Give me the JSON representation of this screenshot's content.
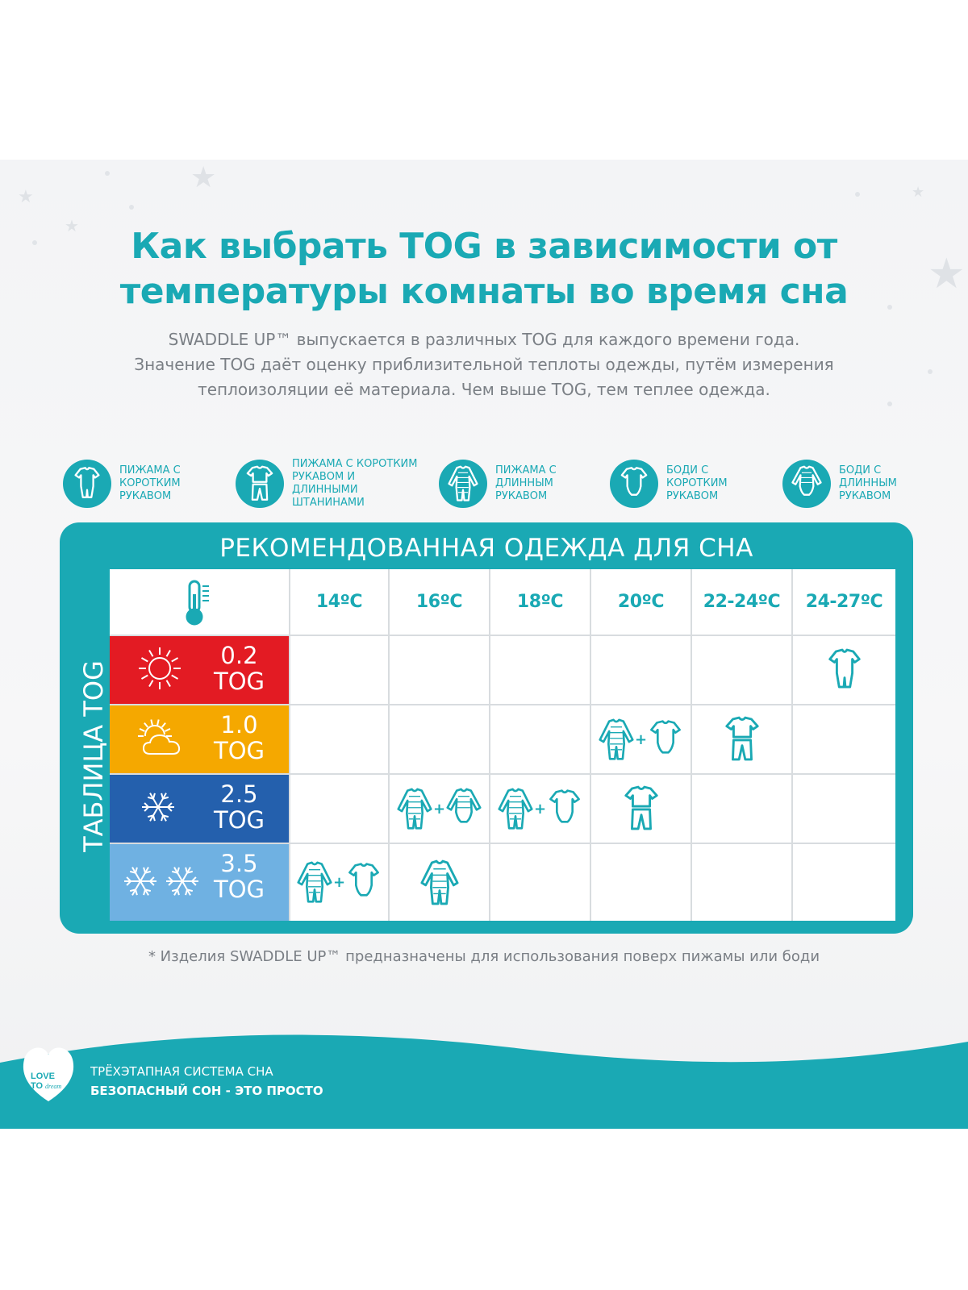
{
  "title_line1": "Как выбрать TOG в зависимости от",
  "title_line2": "температуры комнаты во время сна",
  "intro_lines": [
    "SWADDLE UP™ выпускается в различных TOG для каждого времени года.",
    "Значение TOG даёт оценку приблизительной теплоты одежды, путём измерения",
    "теплоизоляции её материала. Чем выше TOG, тем теплее одежда."
  ],
  "legend": [
    {
      "icon": "short-sleeve-romper-icon",
      "lines": [
        "ПИЖАМА С",
        "КОРОТКИМ",
        "РУКАВОМ"
      ]
    },
    {
      "icon": "short-sleeve-pyjama-set-icon",
      "lines": [
        "ПИЖАМА С КОРОТКИМ",
        "РУКАВОМ И",
        "ДЛИННЫМИ",
        "ШТАНИНАМИ"
      ]
    },
    {
      "icon": "long-sleeve-sleepsuit-icon",
      "lines": [
        "ПИЖАМА С",
        "ДЛИННЫМ",
        "РУКАВОМ"
      ]
    },
    {
      "icon": "short-sleeve-bodysuit-icon",
      "lines": [
        "БОДИ С",
        "КОРОТКИМ",
        "РУКАВОМ"
      ]
    },
    {
      "icon": "long-sleeve-bodysuit-icon",
      "lines": [
        "БОДИ С",
        "ДЛИННЫМ",
        "РУКАВОМ"
      ]
    }
  ],
  "panel_title": "РЕКОМЕНДОВАННАЯ ОДЕЖДА ДЛЯ СНА",
  "side_title": "ТАБЛИЦА TOG",
  "temperatures": [
    "14ºC",
    "16ºC",
    "18ºC",
    "20ºC",
    "22-24ºC",
    "24-27ºC"
  ],
  "tog_rows": [
    {
      "value": "0.2",
      "unit": "TOG",
      "color": "#e31b23",
      "icon": "sun-icon",
      "cells": [
        [],
        [],
        [],
        [],
        [],
        [
          "short-sleeve-romper"
        ]
      ]
    },
    {
      "value": "1.0",
      "unit": "TOG",
      "color": "#f5a800",
      "icon": "sun-cloud-icon",
      "cells": [
        [],
        [],
        [],
        [
          "long-sleeve-sleepsuit",
          "short-sleeve-bodysuit"
        ],
        [
          "short-sleeve-pyjama-set"
        ],
        []
      ]
    },
    {
      "value": "2.5",
      "unit": "TOG",
      "color": "#2460ad",
      "icon": "snowflake-icon",
      "cells": [
        [],
        [
          "long-sleeve-sleepsuit",
          "long-sleeve-bodysuit"
        ],
        [
          "long-sleeve-sleepsuit",
          "short-sleeve-bodysuit"
        ],
        [
          "short-sleeve-pyjama-set"
        ],
        [],
        []
      ]
    },
    {
      "value": "3.5",
      "unit": "TOG",
      "color": "#6fb1e2",
      "icon": "two-snowflakes-icon",
      "cells": [
        [
          "long-sleeve-sleepsuit",
          "short-sleeve-bodysuit"
        ],
        [
          "long-sleeve-sleepsuit"
        ],
        [],
        [],
        [],
        []
      ]
    }
  ],
  "plus_sign": "+",
  "footnote": "* Изделия SWADDLE UP™ предназначены для использования поверх пижамы или боди",
  "footer_line1": "ТРЁХЭТАПНАЯ СИСТЕМА СНА",
  "footer_line2": "БЕЗОПАСНЫЙ СОН - ЭТО ПРОСТО",
  "logo_text": "LOVE TO dream",
  "colors": {
    "teal": "#1aa9b4",
    "grey_text": "#7a7f85"
  }
}
